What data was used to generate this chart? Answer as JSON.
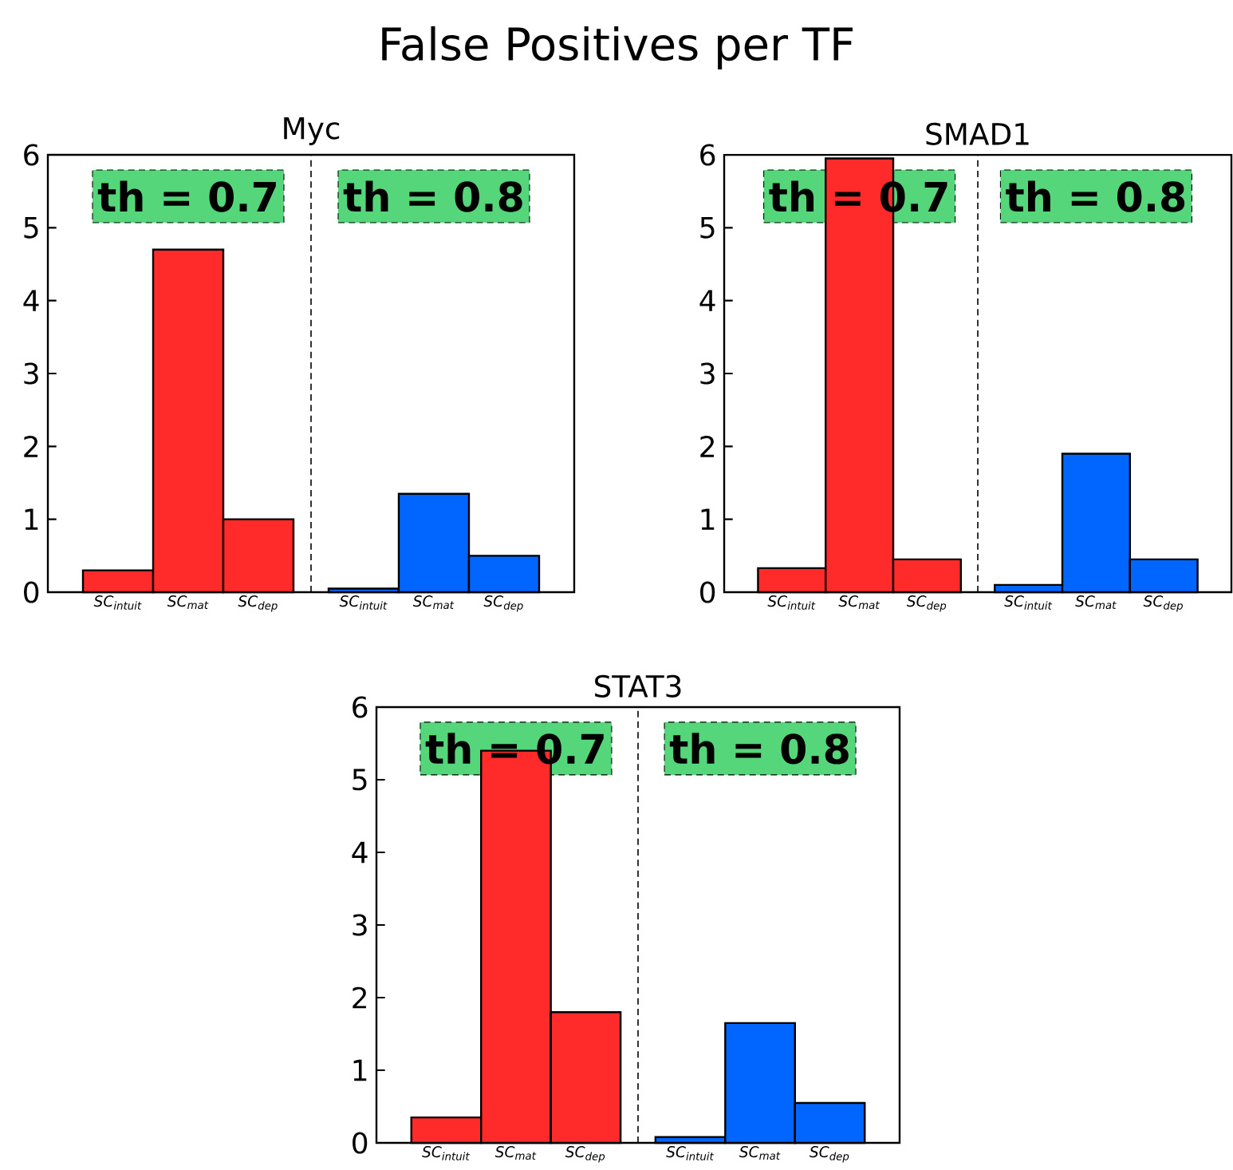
{
  "chart_data": [
    {
      "type": "bar",
      "title": "Myc",
      "categories": [
        "SC$_{intuit}$",
        "SC$_{mat}$",
        "SC$_{dep}$",
        "SC$_{intuit}$",
        "SC$_{mat}$",
        "SC$_{dep}$"
      ],
      "values": [
        0.3,
        4.7,
        1.0,
        0.05,
        1.35,
        0.5
      ],
      "colors": [
        "#ff2a2a",
        "#ff2a2a",
        "#ff2a2a",
        "#0066ff",
        "#0066ff",
        "#0066ff"
      ],
      "ylim": [
        0,
        6
      ],
      "yticks": [
        0,
        1,
        2,
        3,
        4,
        5,
        6
      ],
      "annotations": [
        "False Positives per TF",
        "th = 0.7",
        "th = 0.8"
      ]
    },
    {
      "type": "bar",
      "title": "SMAD1",
      "categories": [
        "SC$_{intuit}$",
        "SC$_{mat}$",
        "SC$_{dep}$",
        "SC$_{intuit}$",
        "SC$_{mat}$",
        "SC$_{dep}$"
      ],
      "values": [
        0.33,
        5.95,
        0.45,
        0.1,
        1.9,
        0.45
      ],
      "colors": [
        "#ff2a2a",
        "#ff2a2a",
        "#ff2a2a",
        "#0066ff",
        "#0066ff",
        "#0066ff"
      ],
      "ylim": [
        0,
        6
      ],
      "yticks": [
        0,
        1,
        2,
        3,
        4,
        5,
        6
      ],
      "annotations": [
        "th = 0.7",
        "th = 0.8"
      ]
    },
    {
      "type": "bar",
      "title": "STAT3",
      "categories": [
        "SC$_{intuit}$",
        "SC$_{mat}$",
        "SC$_{dep}$",
        "SC$_{intuit}$",
        "SC$_{mat}$",
        "SC$_{dep}$"
      ],
      "values": [
        0.35,
        5.4,
        1.8,
        0.08,
        1.65,
        0.55
      ],
      "colors": [
        "#ff2a2a",
        "#ff2a2a",
        "#ff2a2a",
        "#0066ff",
        "#0066ff",
        "#0066ff"
      ],
      "ylim": [
        0,
        6
      ],
      "yticks": [
        0,
        1,
        2,
        3,
        4,
        5,
        6
      ],
      "annotations": [
        "th = 0.7",
        "th = 0.8"
      ]
    }
  ]
}
